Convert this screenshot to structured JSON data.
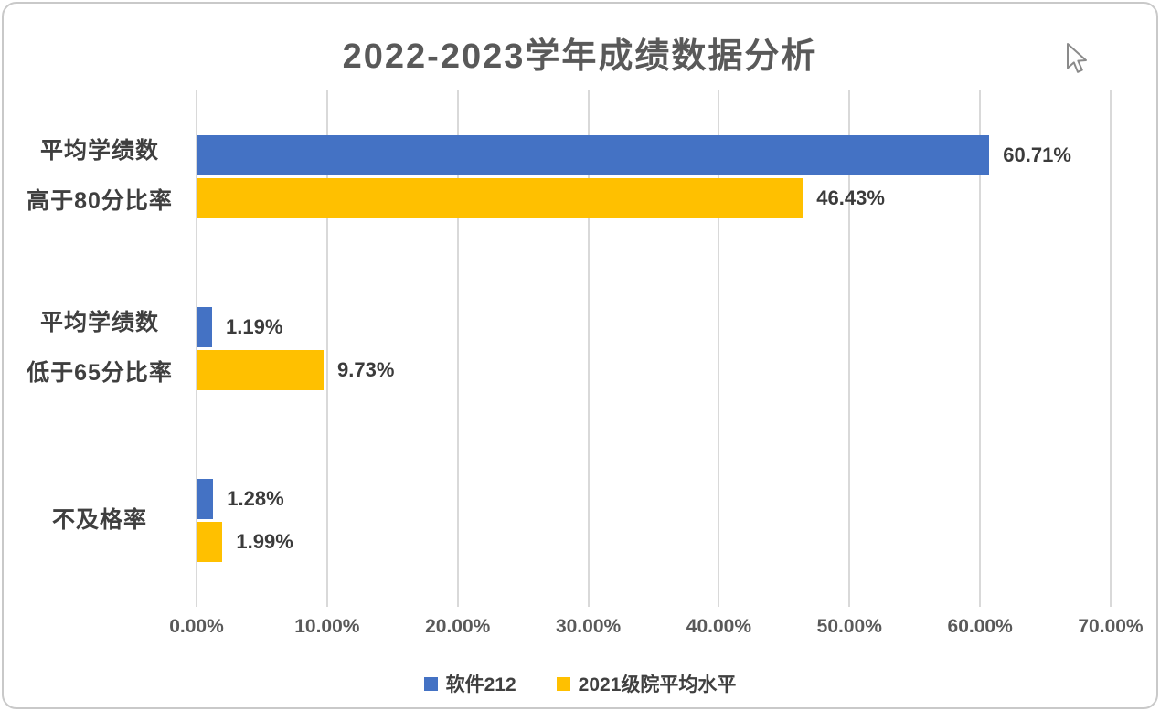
{
  "chart_data": {
    "type": "bar",
    "orientation": "horizontal",
    "title": "2022-2023学年成绩数据分析",
    "categories": [
      "平均学绩数\n高于80分比率",
      "平均学绩数\n低于65分比率",
      "不及格率"
    ],
    "series": [
      {
        "name": "软件212",
        "color": "#4472C4",
        "values": [
          60.71,
          1.19,
          1.28
        ],
        "labels": [
          "60.71%",
          "1.19%",
          "1.28%"
        ]
      },
      {
        "name": "2021级院平均水平",
        "color": "#FFC000",
        "values": [
          46.43,
          9.73,
          1.99
        ],
        "labels": [
          "46.43%",
          "9.73%",
          "1.99%"
        ]
      }
    ],
    "xlim": [
      0,
      70
    ],
    "x_ticks": [
      "0.00%",
      "10.00%",
      "20.00%",
      "30.00%",
      "40.00%",
      "50.00%",
      "60.00%",
      "70.00%"
    ],
    "xlabel": "",
    "ylabel": "",
    "grid": true,
    "legend_position": "bottom",
    "colors": {
      "title_text": "#595959",
      "axis_text": "#595959",
      "label_text": "#3b3b3b",
      "gridline": "#d9d9d9"
    }
  }
}
